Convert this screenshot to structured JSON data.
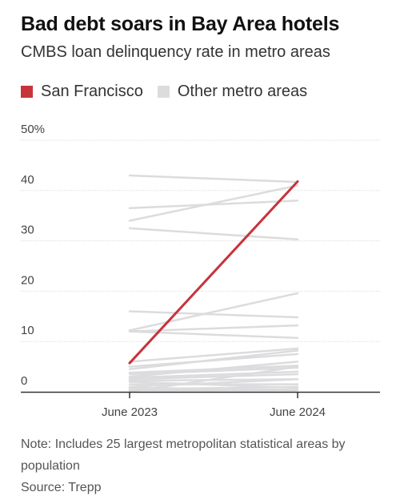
{
  "chart_data": {
    "type": "line",
    "title": "Bad debt soars in Bay Area hotels",
    "subtitle": "CMBS loan delinquency rate in metro areas",
    "x": [
      "June 2023",
      "June 2024"
    ],
    "ylim": [
      0,
      50
    ],
    "yticks": [
      "50%",
      "40",
      "30",
      "20",
      "10",
      "0"
    ],
    "grid": true,
    "legend": [
      {
        "label": "San Francisco",
        "color": "#c8333b"
      },
      {
        "label": "Other metro areas",
        "color": "#dcdcde"
      }
    ],
    "highlight": {
      "name": "San Francisco",
      "values": [
        5.7,
        41.8
      ],
      "color": "#c8333b"
    },
    "others": {
      "color": "#dcdcde",
      "values": [
        [
          43.0,
          41.7
        ],
        [
          36.5,
          38.0
        ],
        [
          34.0,
          41.0
        ],
        [
          32.5,
          30.3
        ],
        [
          16.0,
          14.8
        ],
        [
          12.2,
          19.6
        ],
        [
          12.0,
          13.2
        ],
        [
          12.0,
          10.7
        ],
        [
          6.0,
          8.6
        ],
        [
          5.0,
          7.5
        ],
        [
          4.5,
          8.2
        ],
        [
          3.8,
          5.2
        ],
        [
          3.5,
          4.8
        ],
        [
          3.0,
          6.0
        ],
        [
          2.8,
          4.0
        ],
        [
          2.5,
          3.5
        ],
        [
          2.2,
          2.5
        ],
        [
          2.0,
          0.8
        ],
        [
          1.5,
          1.5
        ],
        [
          1.0,
          2.5
        ],
        [
          0.8,
          0.4
        ],
        [
          0.5,
          1.0
        ],
        [
          0.3,
          0.3
        ],
        [
          0.0,
          5.0
        ]
      ]
    }
  },
  "note": "Note: Includes 25 largest metropolitan statistical areas by population",
  "source": "Source: Trepp"
}
